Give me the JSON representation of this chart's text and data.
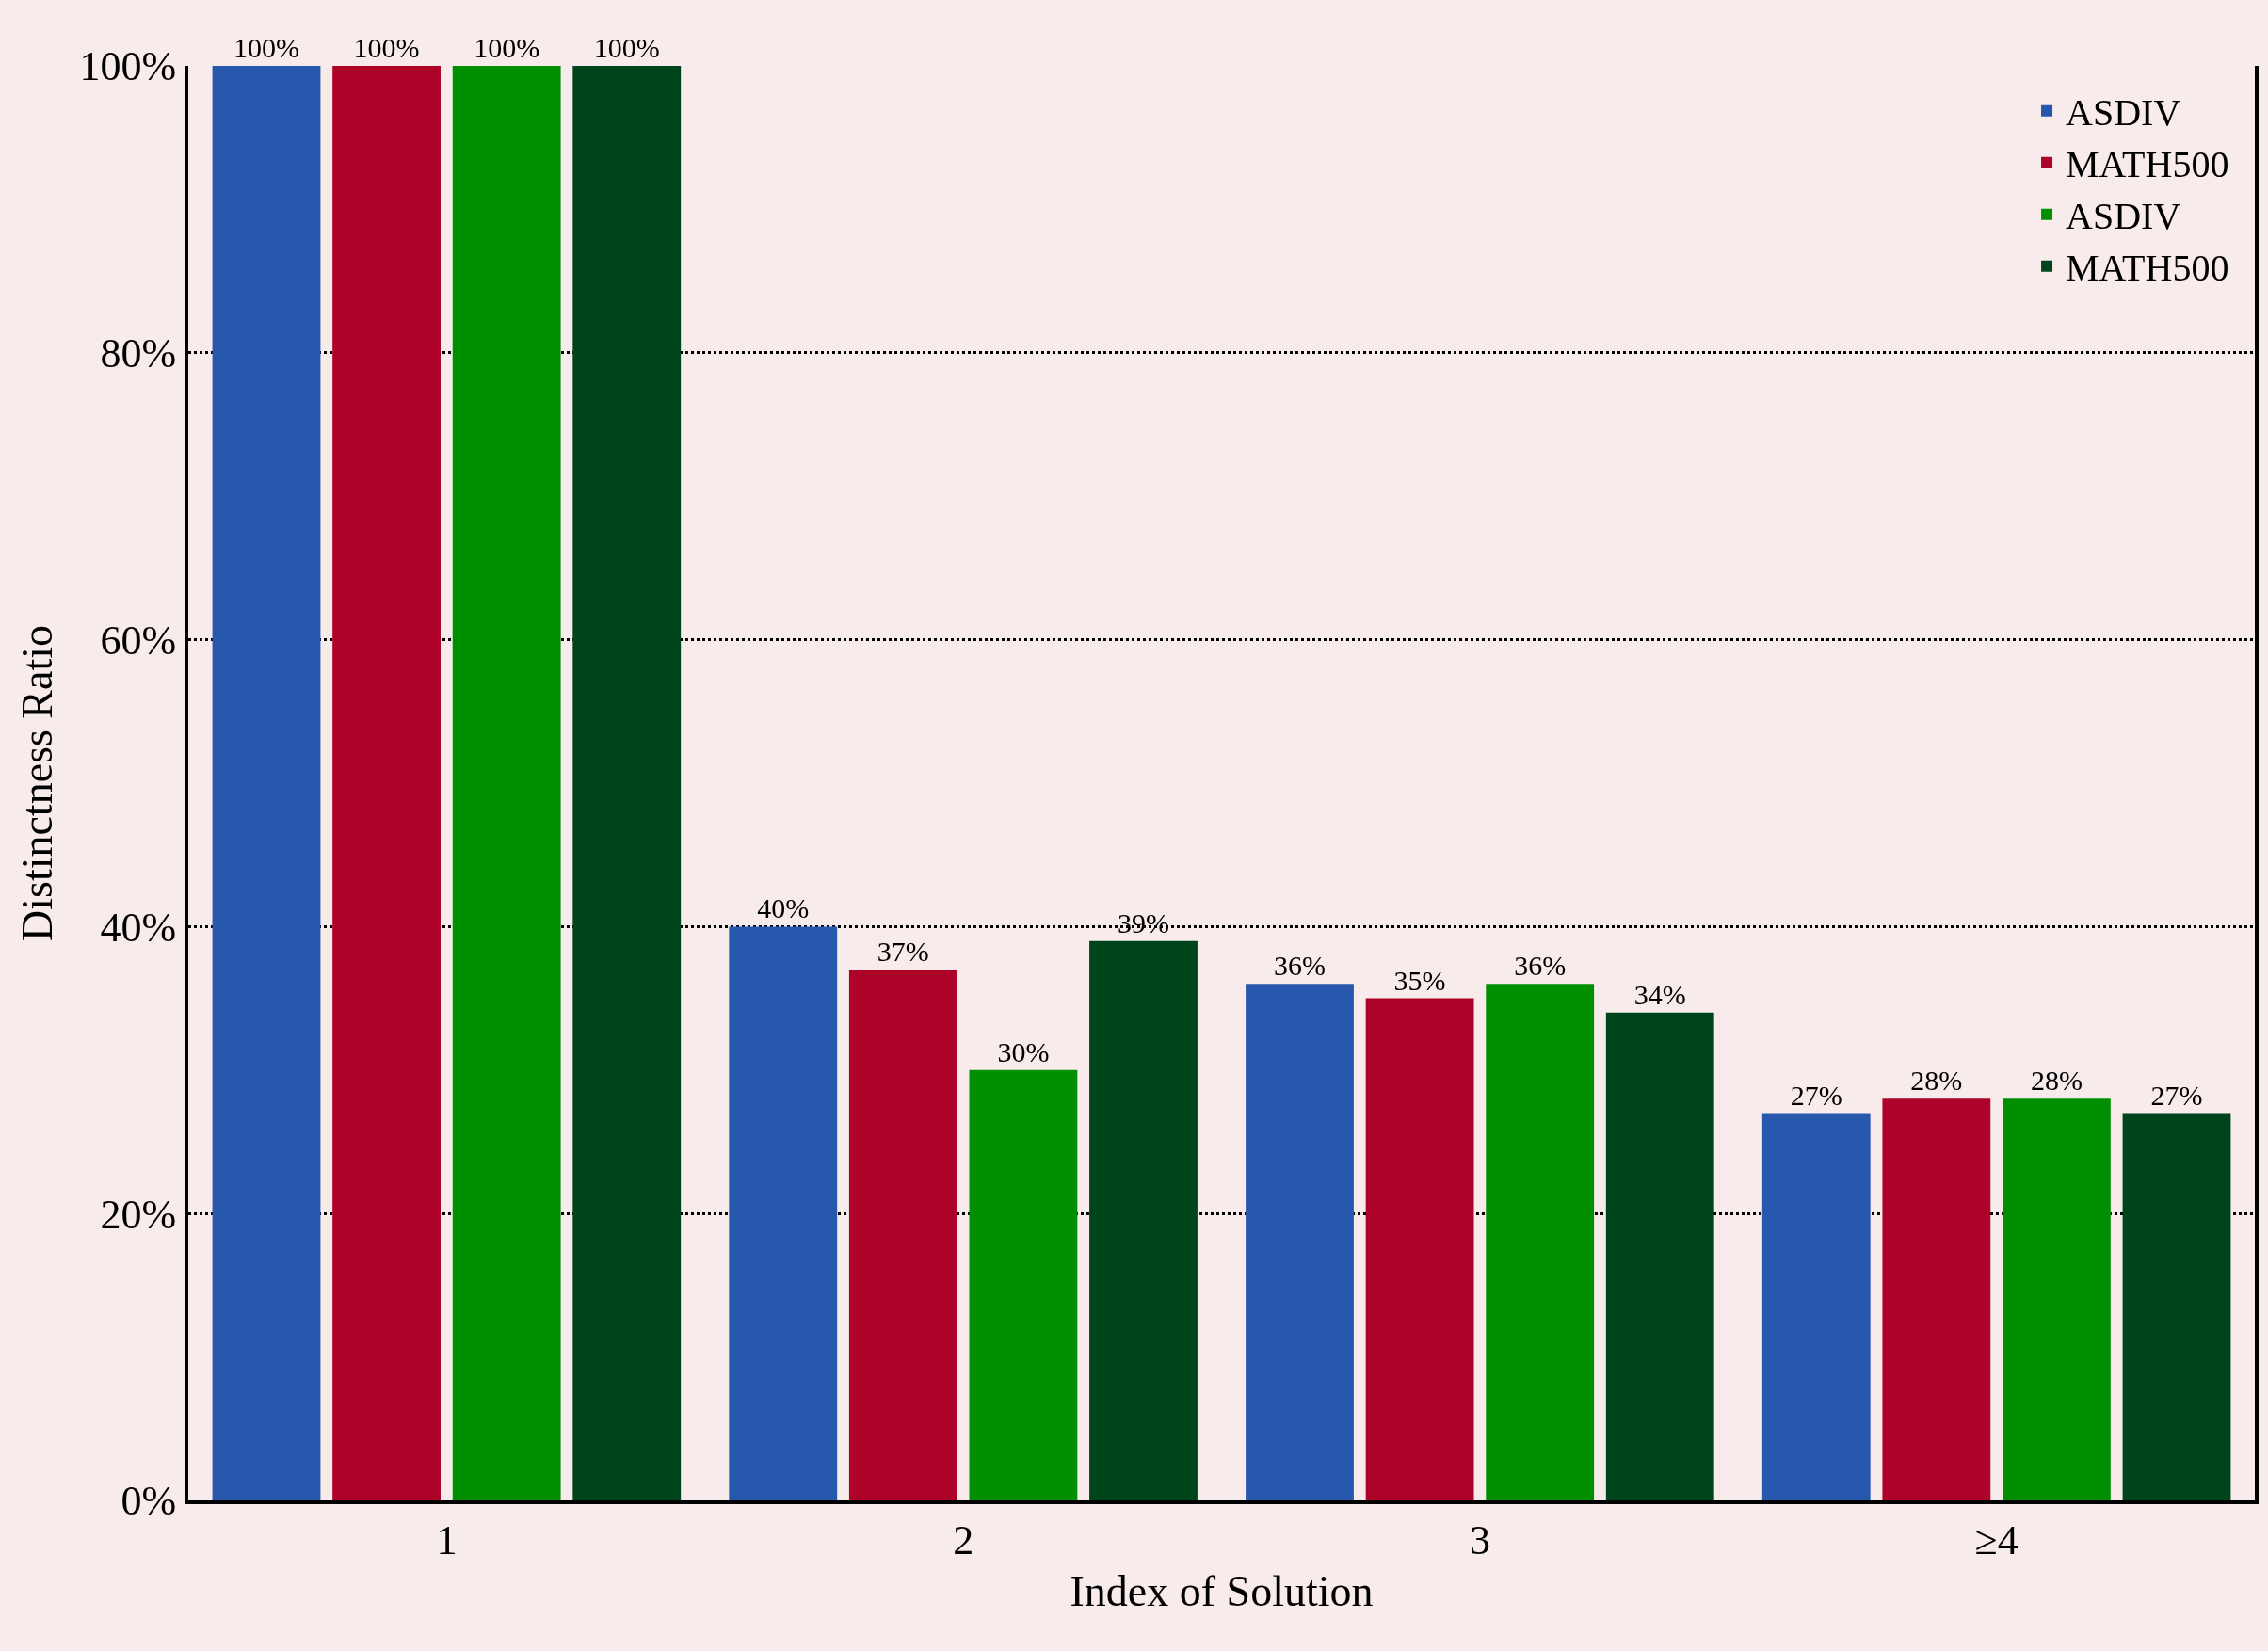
{
  "chart_data": {
    "type": "bar",
    "xlabel": "Index of Solution",
    "ylabel": "Distinctness Ratio",
    "categories": [
      "1",
      "2",
      "3",
      "≥4"
    ],
    "series": [
      {
        "name": "ASDIV",
        "color": "#2858ad",
        "values": [
          100,
          40,
          36,
          27
        ],
        "value_labels": [
          "100%",
          "40%",
          "36%",
          "27%"
        ]
      },
      {
        "name": "MATH500",
        "color": "#ad0329",
        "values": [
          100,
          37,
          35,
          28
        ],
        "value_labels": [
          "100%",
          "37%",
          "35%",
          "28%"
        ]
      },
      {
        "name": "ASDIV",
        "color": "#008f00",
        "values": [
          100,
          30,
          36,
          28
        ],
        "value_labels": [
          "100%",
          "30%",
          "36%",
          "28%"
        ]
      },
      {
        "name": "MATH500",
        "color": "#00441b",
        "values": [
          100,
          39,
          34,
          27
        ],
        "value_labels": [
          "100%",
          "39%",
          "34%",
          "27%"
        ]
      }
    ],
    "ylim": [
      0,
      100
    ],
    "yticks": [
      {
        "value": 0,
        "label": "0%"
      },
      {
        "value": 20,
        "label": "20%"
      },
      {
        "value": 40,
        "label": "40%"
      },
      {
        "value": 60,
        "label": "60%"
      },
      {
        "value": 80,
        "label": "80%"
      },
      {
        "value": 100,
        "label": "100%"
      }
    ],
    "grid": "y",
    "legend": "top right"
  }
}
